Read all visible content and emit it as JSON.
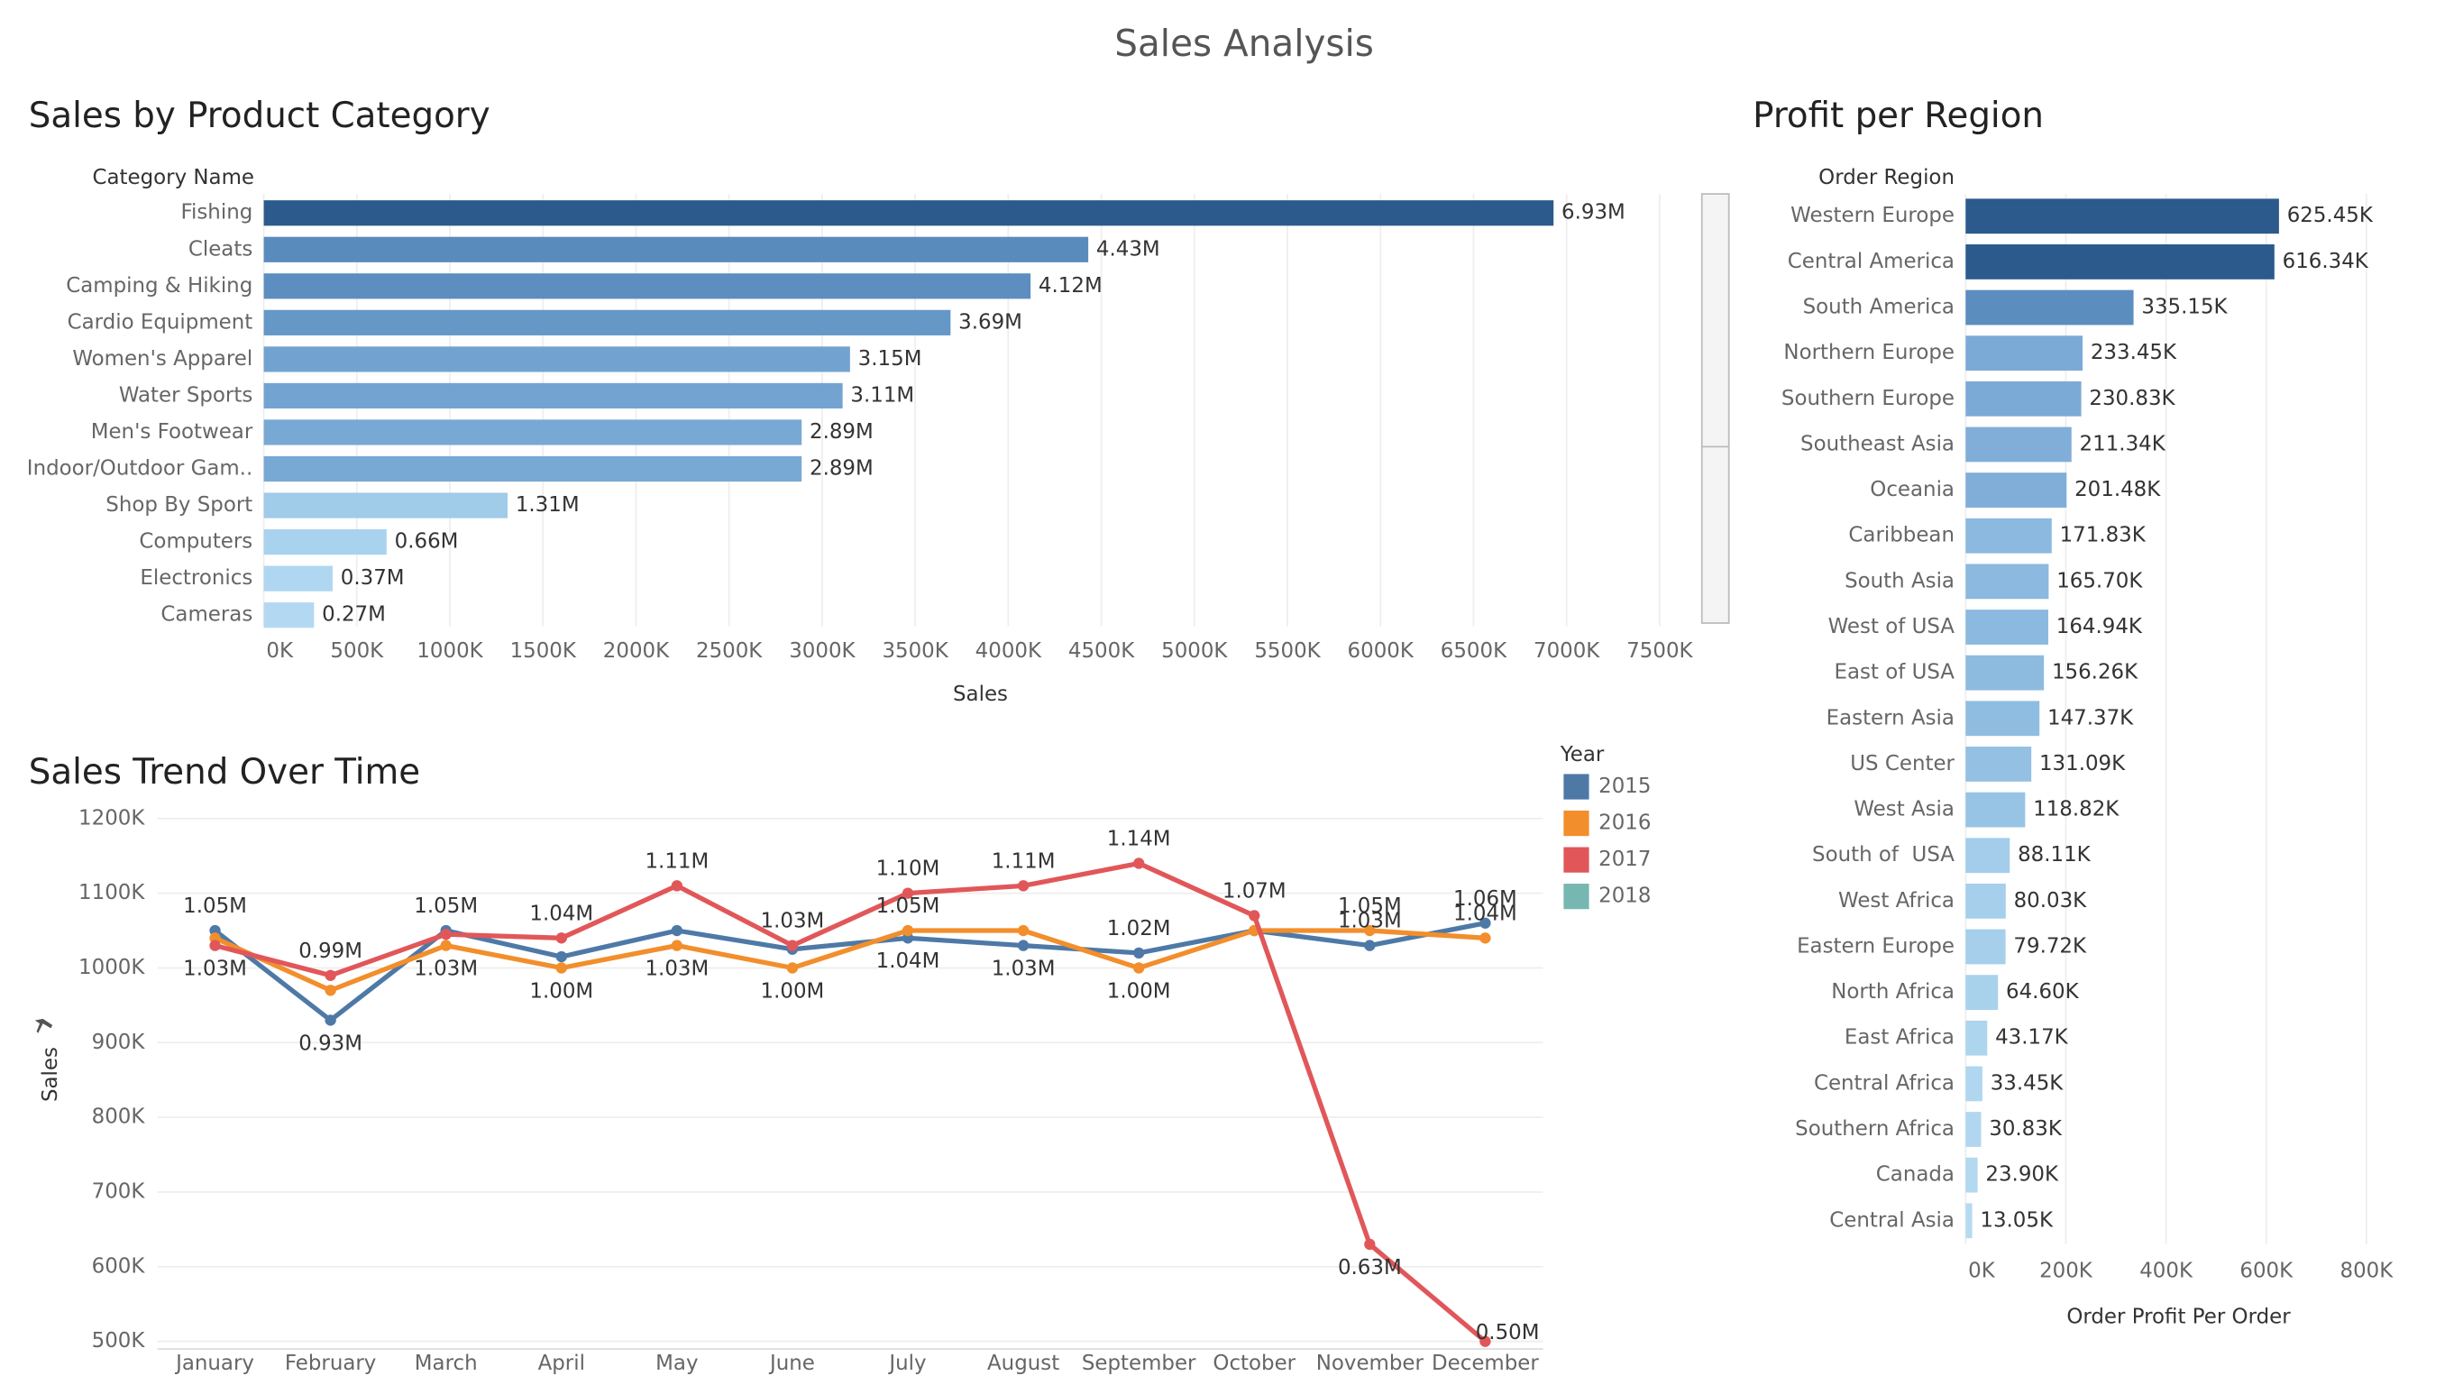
{
  "title": "Sales Analysis",
  "chart_data": [
    {
      "type": "bar",
      "orientation": "horizontal",
      "title": "Sales by Product Category",
      "category_header": "Category Name",
      "xlabel": "Sales",
      "categories": [
        "Fishing",
        "Cleats",
        "Camping & Hiking",
        "Cardio Equipment",
        "Women's Apparel",
        "Water Sports",
        "Men's Footwear",
        "Indoor/Outdoor Gam..",
        "Shop By Sport",
        "Computers",
        "Electronics",
        "Cameras"
      ],
      "values": [
        6930000,
        4430000,
        4120000,
        3690000,
        3150000,
        3110000,
        2890000,
        2890000,
        1310000,
        660000,
        370000,
        270000
      ],
      "value_labels": [
        "6.93M",
        "4.43M",
        "4.12M",
        "3.69M",
        "3.15M",
        "3.11M",
        "2.89M",
        "2.89M",
        "1.31M",
        "0.66M",
        "0.37M",
        "0.27M"
      ],
      "colors": [
        "#2c5a8c",
        "#5a8bbd",
        "#5d8ec0",
        "#6597c7",
        "#72a3d0",
        "#73a4d1",
        "#78a9d4",
        "#78a9d4",
        "#a0cbe9",
        "#a9d2ee",
        "#b0d7f1",
        "#b3d9f2"
      ],
      "xlim": [
        0,
        7650000
      ],
      "xticks": [
        {
          "value": 0,
          "label": "0K"
        },
        {
          "value": 500000,
          "label": "500K"
        },
        {
          "value": 1000000,
          "label": "1000K"
        },
        {
          "value": 1500000,
          "label": "1500K"
        },
        {
          "value": 2000000,
          "label": "2000K"
        },
        {
          "value": 2500000,
          "label": "2500K"
        },
        {
          "value": 3000000,
          "label": "3000K"
        },
        {
          "value": 3500000,
          "label": "3500K"
        },
        {
          "value": 4000000,
          "label": "4000K"
        },
        {
          "value": 4500000,
          "label": "4500K"
        },
        {
          "value": 5000000,
          "label": "5000K"
        },
        {
          "value": 5500000,
          "label": "5500K"
        },
        {
          "value": 6000000,
          "label": "6000K"
        },
        {
          "value": 6500000,
          "label": "6500K"
        },
        {
          "value": 7000000,
          "label": "7000K"
        },
        {
          "value": 7500000,
          "label": "7500K"
        }
      ],
      "grid": true
    },
    {
      "type": "line",
      "title": "Sales Trend Over Time",
      "ylabel": "Sales",
      "legend_title": "Year",
      "legend": "right",
      "categories": [
        "January",
        "February",
        "March",
        "April",
        "May",
        "June",
        "July",
        "August",
        "September",
        "October",
        "November",
        "December"
      ],
      "series": [
        {
          "name": "2015",
          "color": "#4e79a7",
          "values": [
            1050000,
            930000,
            1050000,
            1015000,
            1050000,
            1025000,
            1040000,
            1030000,
            1020000,
            1050000,
            1030000,
            1060000
          ],
          "value_labels": [
            "1.05M",
            "0.93M",
            "1.05M",
            null,
            null,
            null,
            "1.04M",
            "1.03M",
            "1.02M",
            null,
            "1.03M",
            "1.06M"
          ]
        },
        {
          "name": "2016",
          "color": "#f28e2b",
          "values": [
            1040000,
            970000,
            1030000,
            1000000,
            1030000,
            1000000,
            1050000,
            1050000,
            1000000,
            1050000,
            1050000,
            1040000
          ],
          "value_labels": [
            null,
            null,
            "1.03M",
            "1.00M",
            "1.03M",
            "1.00M",
            "1.05M",
            null,
            "1.00M",
            null,
            "1.05M",
            "1.04M"
          ]
        },
        {
          "name": "2017",
          "color": "#e15759",
          "values": [
            1030000,
            990000,
            1045000,
            1040000,
            1110000,
            1030000,
            1100000,
            1110000,
            1140000,
            1070000,
            630000,
            500000
          ],
          "value_labels": [
            "1.03M",
            "0.99M",
            null,
            "1.04M",
            "1.11M",
            "1.03M",
            "1.10M",
            "1.11M",
            "1.14M",
            "1.07M",
            "0.63M",
            "0.50M"
          ]
        },
        {
          "name": "2018",
          "color": "#76b7b2",
          "values": [
            null,
            null,
            null,
            null,
            null,
            null,
            null,
            null,
            null,
            null,
            null,
            null
          ]
        }
      ],
      "ylim": [
        490000,
        1220000
      ],
      "yticks": [
        {
          "value": 500000,
          "label": "500K"
        },
        {
          "value": 600000,
          "label": "600K"
        },
        {
          "value": 700000,
          "label": "700K"
        },
        {
          "value": 800000,
          "label": "800K"
        },
        {
          "value": 900000,
          "label": "900K"
        },
        {
          "value": 1000000,
          "label": "1000K"
        },
        {
          "value": 1100000,
          "label": "1100K"
        },
        {
          "value": 1200000,
          "label": "1200K"
        }
      ],
      "grid": true
    },
    {
      "type": "bar",
      "orientation": "horizontal",
      "title": "Profit per Region",
      "category_header": "Order Region",
      "xlabel": "Order Profit Per Order",
      "categories": [
        "Western Europe",
        "Central America",
        "South America",
        "Northern Europe",
        "Southern Europe",
        "Southeast Asia",
        "Oceania",
        "Caribbean",
        "South Asia",
        "West of USA",
        "East of USA",
        "Eastern Asia",
        "US Center",
        "West Asia",
        "South of  USA",
        "West Africa",
        "Eastern Europe",
        "North Africa",
        "East Africa",
        "Central Africa",
        "Southern Africa",
        "Canada",
        "Central Asia"
      ],
      "values": [
        625450,
        616340,
        335150,
        233450,
        230830,
        211340,
        201480,
        171830,
        165700,
        164940,
        156260,
        147370,
        131090,
        118820,
        88110,
        80030,
        79720,
        64600,
        43170,
        33450,
        30830,
        23900,
        13050
      ],
      "value_labels": [
        "625.45K",
        "616.34K",
        "335.15K",
        "233.45K",
        "230.83K",
        "211.34K",
        "201.48K",
        "171.83K",
        "165.70K",
        "164.94K",
        "156.26K",
        "147.37K",
        "131.09K",
        "118.82K",
        "88.11K",
        "80.03K",
        "79.72K",
        "64.60K",
        "43.17K",
        "33.45K",
        "30.83K",
        "23.90K",
        "13.05K"
      ],
      "colors": [
        "#2c5a8c",
        "#2c5a8c",
        "#5b8dbf",
        "#7caad6",
        "#7caad6",
        "#80aed8",
        "#80aed8",
        "#8bb9df",
        "#8bb9df",
        "#8bb9df",
        "#8dbbe0",
        "#8fbde1",
        "#93c0e3",
        "#97c4e5",
        "#a3cdea",
        "#a5cfeb",
        "#a5cfeb",
        "#a8d1ec",
        "#add5ee",
        "#b0d7ef",
        "#b0d7ef",
        "#b3d9f0",
        "#b5dbf1"
      ],
      "xlim": [
        0,
        850000
      ],
      "xticks": [
        {
          "value": 0,
          "label": "0K"
        },
        {
          "value": 200000,
          "label": "200K"
        },
        {
          "value": 400000,
          "label": "400K"
        },
        {
          "value": 600000,
          "label": "600K"
        },
        {
          "value": 800000,
          "label": "800K"
        }
      ],
      "grid": true
    }
  ]
}
